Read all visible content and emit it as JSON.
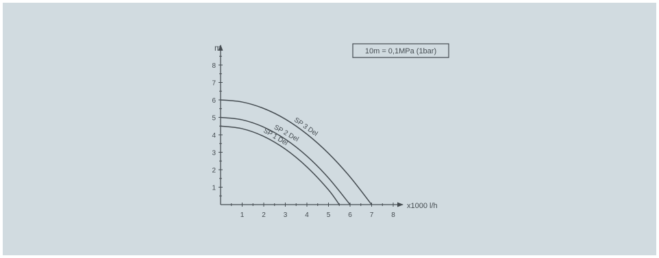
{
  "chart_data": {
    "type": "line",
    "title": "",
    "xlabel": "x1000 l/h",
    "ylabel": "m",
    "xlim": [
      0,
      8
    ],
    "ylim": [
      0,
      8
    ],
    "x_ticks": [
      "1",
      "2",
      "3",
      "4",
      "5",
      "6",
      "7",
      "8"
    ],
    "y_ticks": [
      "1",
      "2",
      "3",
      "4",
      "5",
      "6",
      "7",
      "8"
    ],
    "grid": false,
    "note": "10m = 0,1MPa (1bar)",
    "series": [
      {
        "name": "SP 3 Del",
        "x": [
          0,
          1,
          2,
          3,
          4,
          5,
          6,
          7
        ],
        "y": [
          6.0,
          5.88,
          5.51,
          4.9,
          4.04,
          2.94,
          1.59,
          0
        ]
      },
      {
        "name": "SP 2 Del",
        "x": [
          0,
          1,
          2,
          3,
          4,
          5,
          6
        ],
        "y": [
          5.0,
          4.86,
          4.44,
          3.75,
          2.78,
          1.53,
          0
        ]
      },
      {
        "name": "SP 1 Del",
        "x": [
          0,
          1,
          2,
          3,
          4,
          5,
          5.5
        ],
        "y": [
          4.5,
          4.35,
          3.91,
          3.18,
          2.16,
          0.85,
          0
        ]
      }
    ]
  },
  "colors": {
    "panel": "#d1dbe0",
    "ink": "#444b50"
  }
}
